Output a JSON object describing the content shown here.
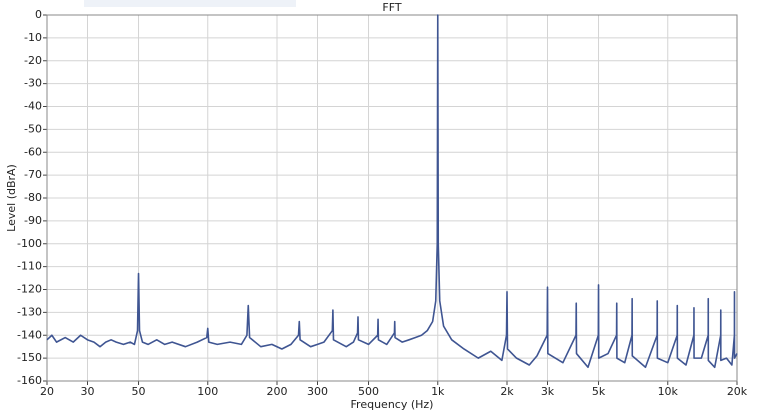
{
  "chart_data": {
    "type": "line",
    "title": "FFT",
    "x_label": "Frequency (Hz)",
    "y_label": "Level (dBrA)",
    "x_scale": "log",
    "grid": true,
    "xlim": [
      20,
      20000
    ],
    "xticks": [
      20,
      30,
      50,
      100,
      200,
      300,
      500,
      {
        "value": 1000,
        "label": "1k"
      },
      {
        "value": 2000,
        "label": "2k"
      },
      {
        "value": 3000,
        "label": "3k"
      },
      {
        "value": 5000,
        "label": "5k"
      },
      {
        "value": 10000,
        "label": "10k"
      },
      {
        "value": 20000,
        "label": "20k"
      }
    ],
    "ylim": [
      -160,
      0
    ],
    "yticks": [
      0,
      -10,
      -20,
      -30,
      -40,
      -50,
      -60,
      -70,
      -80,
      -90,
      -100,
      -110,
      -120,
      -130,
      -140,
      -150,
      -160
    ],
    "series": [
      {
        "color": "#3f5592",
        "x": [
          20,
          21,
          22,
          24,
          26,
          28,
          30,
          32,
          34,
          36,
          38,
          40,
          43,
          46,
          48,
          49.5,
          50,
          50.5,
          52,
          55,
          60,
          65,
          70,
          80,
          90,
          99,
          100,
          101,
          110,
          125,
          140,
          148,
          150,
          152,
          170,
          190,
          210,
          230,
          248,
          250,
          252,
          280,
          300,
          320,
          348,
          350,
          352,
          400,
          430,
          448,
          450,
          452,
          500,
          548,
          550,
          552,
          600,
          648,
          650,
          652,
          700,
          750,
          800,
          850,
          900,
          950,
          980,
          995,
          1000,
          1005,
          1020,
          1060,
          1150,
          1300,
          1500,
          1700,
          1900,
          1990,
          2000,
          2010,
          2200,
          2500,
          2700,
          2990,
          3000,
          3010,
          3500,
          3990,
          4000,
          4010,
          4500,
          4990,
          5000,
          5010,
          5500,
          5990,
          6000,
          6010,
          6500,
          6990,
          7000,
          7010,
          8000,
          8990,
          9000,
          9010,
          10000,
          10990,
          11000,
          11010,
          12000,
          12990,
          13000,
          13010,
          14000,
          14990,
          15000,
          15010,
          16000,
          16990,
          17000,
          17010,
          18000,
          19000,
          19490,
          19500,
          19510,
          20000
        ],
        "values": [
          -142,
          -140,
          -143,
          -141,
          -143,
          -140,
          -142,
          -143,
          -145,
          -143,
          -142,
          -143,
          -144,
          -143,
          -144,
          -138,
          -113,
          -138,
          -143,
          -144,
          -142,
          -144,
          -143,
          -145,
          -143,
          -141,
          -137,
          -143,
          -144,
          -143,
          -144,
          -140,
          -127,
          -141,
          -145,
          -144,
          -146,
          -144,
          -140,
          -134,
          -142,
          -145,
          -144,
          -143,
          -138,
          -129,
          -142,
          -145,
          -143,
          -139,
          -132,
          -142,
          -144,
          -140,
          -133,
          -142,
          -144,
          -139,
          -134,
          -141,
          -143,
          -142,
          -141,
          -140,
          -138,
          -134,
          -125,
          -100,
          0,
          -100,
          -125,
          -136,
          -142,
          -146,
          -150,
          -147,
          -151,
          -140,
          -121,
          -146,
          -150,
          -153,
          -149,
          -140,
          -119,
          -148,
          -152,
          -140,
          -126,
          -148,
          -154,
          -140,
          -118,
          -150,
          -148,
          -140,
          -126,
          -150,
          -152,
          -140,
          -124,
          -149,
          -154,
          -140,
          -125,
          -150,
          -152,
          -140,
          -127,
          -150,
          -153,
          -140,
          -128,
          -150,
          -150,
          -140,
          -124,
          -151,
          -154,
          -140,
          -129,
          -151,
          -150,
          -153,
          -140,
          -121,
          -150,
          -148
        ]
      }
    ]
  }
}
